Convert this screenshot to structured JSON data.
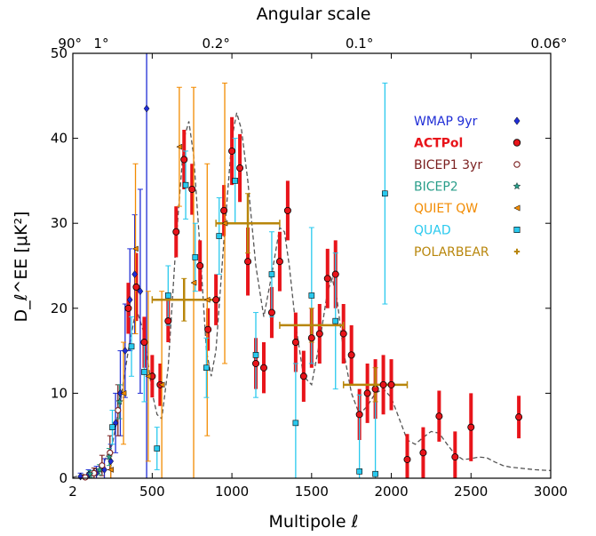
{
  "chart_data": {
    "type": "scatter",
    "title": "",
    "xlabel": "Multipole ℓ",
    "ylabel": "D_ℓ^EE [μK²]",
    "top_axis_label": "Angular scale",
    "top_tick_labels": [
      {
        "label": "90°",
        "ell": 2
      },
      {
        "label": "1°",
        "ell": 180
      },
      {
        "label": "0.2°",
        "ell": 900
      },
      {
        "label": "0.1°",
        "ell": 1800
      },
      {
        "label": "0.06°",
        "ell": 3000
      }
    ],
    "xlim": [
      2,
      3000
    ],
    "ylim": [
      0,
      50
    ],
    "x_ticks": [
      2,
      500,
      1000,
      1500,
      2000,
      2500,
      3000
    ],
    "y_ticks": [
      0,
      10,
      20,
      30,
      40,
      50
    ],
    "grid": false,
    "legend_position": "top-right",
    "theory_curve": {
      "style": "dashed",
      "color": "#555555",
      "x": [
        2,
        50,
        100,
        150,
        200,
        250,
        300,
        350,
        400,
        450,
        500,
        530,
        560,
        600,
        650,
        700,
        730,
        760,
        800,
        840,
        870,
        900,
        950,
        1000,
        1030,
        1060,
        1100,
        1150,
        1200,
        1250,
        1300,
        1330,
        1360,
        1400,
        1450,
        1500,
        1550,
        1600,
        1630,
        1660,
        1700,
        1750,
        1800,
        1850,
        1900,
        1950,
        2000,
        2050,
        2100,
        2150,
        2200,
        2250,
        2300,
        2350,
        2400,
        2450,
        2500,
        2550,
        2600,
        2650,
        2700,
        2750,
        2800,
        2900,
        3000
      ],
      "y": [
        0.1,
        0.3,
        0.7,
        1.2,
        2.0,
        4.0,
        9.0,
        15.0,
        20.0,
        17.0,
        10.0,
        7.5,
        7.0,
        13.0,
        28.0,
        40.0,
        42.0,
        38.0,
        27.0,
        15.0,
        12.0,
        15.0,
        28.0,
        40.0,
        43.0,
        41.0,
        35.0,
        25.0,
        19.0,
        24.0,
        29.5,
        29.0,
        25.0,
        18.0,
        12.0,
        11.0,
        16.0,
        22.0,
        23.5,
        21.0,
        15.0,
        10.0,
        7.5,
        8.5,
        10.0,
        10.5,
        9.5,
        7.0,
        4.5,
        4.0,
        4.8,
        5.5,
        5.3,
        4.0,
        2.8,
        2.2,
        2.3,
        2.5,
        2.4,
        1.9,
        1.5,
        1.3,
        1.2,
        1.0,
        0.9
      ]
    },
    "series": [
      {
        "name": "WMAP 9yr",
        "color": "#1f2dd6",
        "marker": "diamond",
        "points": [
          {
            "x": 50,
            "y": 0.2,
            "err": 0.4
          },
          {
            "x": 100,
            "y": 0.4,
            "err": 0.6
          },
          {
            "x": 150,
            "y": 0.6,
            "err": 0.8
          },
          {
            "x": 200,
            "y": 1.0,
            "err": 1.3
          },
          {
            "x": 240,
            "y": 2.0,
            "err": 2.0
          },
          {
            "x": 270,
            "y": 6.5,
            "err": 3.5
          },
          {
            "x": 300,
            "y": 10.0,
            "err": 5.0
          },
          {
            "x": 330,
            "y": 15.0,
            "err": 5.5
          },
          {
            "x": 360,
            "y": 21.0,
            "err": 6.0
          },
          {
            "x": 390,
            "y": 24.0,
            "err": 7.0
          },
          {
            "x": 425,
            "y": 22.0,
            "err": 12.0
          },
          {
            "x": 465,
            "y": 43.5,
            "err": 45.0
          }
        ]
      },
      {
        "name": "ACTPol",
        "color": "#e8141a",
        "marker": "circle",
        "points": [
          {
            "x": 350,
            "y": 20.0,
            "err": 3.0
          },
          {
            "x": 400,
            "y": 22.5,
            "err": 4.0
          },
          {
            "x": 450,
            "y": 16.0,
            "err": 3.0
          },
          {
            "x": 500,
            "y": 12.0,
            "err": 2.5
          },
          {
            "x": 550,
            "y": 11.0,
            "err": 2.5
          },
          {
            "x": 600,
            "y": 18.5,
            "err": 2.5
          },
          {
            "x": 650,
            "y": 29.0,
            "err": 3.0
          },
          {
            "x": 700,
            "y": 37.5,
            "err": 3.5
          },
          {
            "x": 750,
            "y": 34.0,
            "err": 3.0
          },
          {
            "x": 800,
            "y": 25.0,
            "err": 3.0
          },
          {
            "x": 850,
            "y": 17.5,
            "err": 2.5
          },
          {
            "x": 900,
            "y": 21.0,
            "err": 3.0
          },
          {
            "x": 950,
            "y": 31.5,
            "err": 3.0
          },
          {
            "x": 1000,
            "y": 38.5,
            "err": 4.0
          },
          {
            "x": 1050,
            "y": 36.5,
            "err": 4.0
          },
          {
            "x": 1100,
            "y": 25.5,
            "err": 4.0
          },
          {
            "x": 1150,
            "y": 13.5,
            "err": 3.0
          },
          {
            "x": 1200,
            "y": 13.0,
            "err": 3.0
          },
          {
            "x": 1250,
            "y": 19.5,
            "err": 3.0
          },
          {
            "x": 1300,
            "y": 25.5,
            "err": 3.5
          },
          {
            "x": 1350,
            "y": 31.5,
            "err": 3.5
          },
          {
            "x": 1400,
            "y": 16.0,
            "err": 3.5
          },
          {
            "x": 1450,
            "y": 12.0,
            "err": 3.0
          },
          {
            "x": 1500,
            "y": 16.5,
            "err": 3.5
          },
          {
            "x": 1550,
            "y": 17.0,
            "err": 3.5
          },
          {
            "x": 1600,
            "y": 23.5,
            "err": 3.5
          },
          {
            "x": 1650,
            "y": 24.0,
            "err": 4.0
          },
          {
            "x": 1700,
            "y": 17.0,
            "err": 3.5
          },
          {
            "x": 1750,
            "y": 14.5,
            "err": 3.5
          },
          {
            "x": 1800,
            "y": 7.5,
            "err": 3.0
          },
          {
            "x": 1850,
            "y": 10.0,
            "err": 3.5
          },
          {
            "x": 1900,
            "y": 10.5,
            "err": 3.5
          },
          {
            "x": 1950,
            "y": 11.0,
            "err": 3.5
          },
          {
            "x": 2000,
            "y": 11.0,
            "err": 3.0
          },
          {
            "x": 2100,
            "y": 2.2,
            "err": 3.0
          },
          {
            "x": 2200,
            "y": 3.0,
            "err": 3.0
          },
          {
            "x": 2300,
            "y": 7.3,
            "err": 3.0
          },
          {
            "x": 2400,
            "y": 2.5,
            "err": 3.0
          },
          {
            "x": 2500,
            "y": 6.0,
            "err": 4.0
          },
          {
            "x": 2800,
            "y": 7.2,
            "err": 2.5
          }
        ]
      },
      {
        "name": "BICEP1 3yr",
        "color": "#7a1f1f",
        "marker": "open-circle",
        "points": [
          {
            "x": 80,
            "y": 0.1,
            "err": 0.3
          },
          {
            "x": 135,
            "y": 0.6,
            "err": 0.6
          },
          {
            "x": 185,
            "y": 1.5,
            "err": 1.2
          },
          {
            "x": 235,
            "y": 3.0,
            "err": 2.0
          },
          {
            "x": 285,
            "y": 8.0,
            "err": 3.0
          }
        ]
      },
      {
        "name": "BICEP2",
        "color": "#2a9e8a",
        "marker": "star",
        "points": [
          {
            "x": 110,
            "y": 0.5,
            "err": 0.4
          },
          {
            "x": 170,
            "y": 1.0,
            "err": 0.6
          },
          {
            "x": 230,
            "y": 2.5,
            "err": 1.0
          },
          {
            "x": 295,
            "y": 9.0,
            "err": 2.0
          }
        ]
      },
      {
        "name": "QUIET QW",
        "color": "#f28b00",
        "marker": "left-triangle",
        "points": [
          {
            "x": 240,
            "y": 1.0,
            "err": 2.0
          },
          {
            "x": 320,
            "y": 10.0,
            "err": 6.0
          },
          {
            "x": 395,
            "y": 27.0,
            "err": 10.0
          },
          {
            "x": 475,
            "y": 12.0,
            "err": 10.0
          },
          {
            "x": 560,
            "y": 11.0,
            "err": 11.0
          },
          {
            "x": 670,
            "y": 39.0,
            "err": 7.0
          },
          {
            "x": 760,
            "y": 23.0,
            "err": 23.0
          },
          {
            "x": 845,
            "y": 21.0,
            "err": 16.0
          },
          {
            "x": 955,
            "y": 30.0,
            "err": 16.5
          }
        ]
      },
      {
        "name": "QUAD",
        "color": "#29c9ee",
        "marker": "square",
        "points": [
          {
            "x": 250,
            "y": 6.0,
            "err": 2.0
          },
          {
            "x": 370,
            "y": 15.5,
            "err": 3.5
          },
          {
            "x": 450,
            "y": 12.5,
            "err": 3.5
          },
          {
            "x": 530,
            "y": 3.5,
            "err": 2.5
          },
          {
            "x": 600,
            "y": 21.5,
            "err": 3.5
          },
          {
            "x": 710,
            "y": 34.5,
            "err": 4.0
          },
          {
            "x": 770,
            "y": 26.0,
            "err": 4.0
          },
          {
            "x": 840,
            "y": 13.0,
            "err": 3.5
          },
          {
            "x": 920,
            "y": 28.5,
            "err": 4.5
          },
          {
            "x": 1020,
            "y": 35.0,
            "err": 5.0
          },
          {
            "x": 1150,
            "y": 14.5,
            "err": 5.0
          },
          {
            "x": 1250,
            "y": 24.0,
            "err": 5.0
          },
          {
            "x": 1400,
            "y": 6.5,
            "err": 7.0
          },
          {
            "x": 1500,
            "y": 21.5,
            "err": 8.0
          },
          {
            "x": 1650,
            "y": 18.5,
            "err": 8.0
          },
          {
            "x": 1800,
            "y": 0.8,
            "err": 9.0
          },
          {
            "x": 1900,
            "y": 0.5,
            "err": 10.0
          },
          {
            "x": 1960,
            "y": 33.5,
            "err": 13.0
          }
        ]
      },
      {
        "name": "POLARBEAR",
        "color": "#b8860b",
        "marker": "plus",
        "points": [
          {
            "x": 700,
            "y": 21.0,
            "xerr": 200,
            "err": 2.5
          },
          {
            "x": 1100,
            "y": 30.0,
            "xerr": 200,
            "err": 3.5
          },
          {
            "x": 1500,
            "y": 18.0,
            "xerr": 200,
            "err": 2.0
          },
          {
            "x": 1900,
            "y": 11.0,
            "xerr": 200,
            "err": 2.0
          }
        ]
      }
    ]
  }
}
